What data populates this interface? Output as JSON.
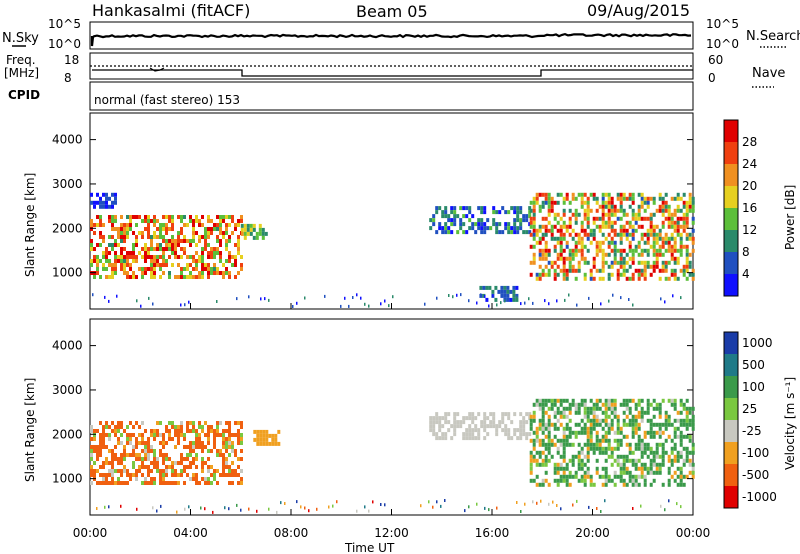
{
  "header": {
    "station": "Hankasalmi (fitACF)",
    "beam": "Beam 05",
    "date": "09/Aug/2015"
  },
  "strip": {
    "nsky_label": "N.Sky",
    "nsearch_label": "N.Search",
    "freq_label_1": "Freq.",
    "freq_label_2": "[MHz]",
    "nave_label": "Nave",
    "cpid_label": "CPID",
    "cpid_value": "normal (fast stereo) 153",
    "noise_ticks": [
      "10^5",
      "10^0"
    ],
    "freq_ticks": [
      "18",
      "8"
    ],
    "nave_ticks": [
      "60",
      "0"
    ]
  },
  "axes": {
    "ylabel": "Slant Range [km]",
    "xlabel": "Time UT",
    "x_ticks": [
      "00:00",
      "04:00",
      "08:00",
      "12:00",
      "16:00",
      "20:00",
      "00:00"
    ],
    "y_ticks": [
      "1000",
      "2000",
      "3000",
      "4000"
    ],
    "power_label": "Power [dB]",
    "velocity_label": "Velocity [m s⁻¹]"
  },
  "chart_data": [
    {
      "type": "heatmap",
      "panel": "power",
      "xlabel": "Time UT",
      "ylabel": "Slant Range [km]",
      "xlim": [
        0,
        24
      ],
      "ylim": [
        180,
        4600
      ],
      "colorbar_label": "Power [dB]",
      "colorbar_ticks": [
        4,
        8,
        12,
        16,
        20,
        24,
        28
      ],
      "colorbar_colors": [
        "#1010ff",
        "#2050c0",
        "#2a8a6a",
        "#5cbf3a",
        "#e6d020",
        "#f09020",
        "#f04010",
        "#e00000"
      ],
      "echo_regions": [
        {
          "t": [
            0.0,
            6.0
          ],
          "range_km": [
            900,
            2300
          ],
          "power_db": [
            12,
            30
          ]
        },
        {
          "t": [
            0.0,
            1.0
          ],
          "range_km": [
            2500,
            2800
          ],
          "power_db": [
            4,
            8
          ]
        },
        {
          "t": [
            6.0,
            7.0
          ],
          "range_km": [
            1800,
            2100
          ],
          "power_db": [
            10,
            20
          ]
        },
        {
          "t": [
            13.5,
            17.5
          ],
          "range_km": [
            1900,
            2500
          ],
          "power_db": [
            4,
            14
          ]
        },
        {
          "t": [
            15.5,
            17.0
          ],
          "range_km": [
            350,
            700
          ],
          "power_db": [
            4,
            12
          ]
        },
        {
          "t": [
            17.5,
            24.0
          ],
          "range_km": [
            900,
            2800
          ],
          "power_db": [
            8,
            28
          ]
        }
      ]
    },
    {
      "type": "heatmap",
      "panel": "velocity",
      "xlabel": "Time UT",
      "ylabel": "Slant Range [km]",
      "xlim": [
        0,
        24
      ],
      "ylim": [
        180,
        4600
      ],
      "colorbar_label": "Velocity [m s⁻¹]",
      "colorbar_ticks": [
        "1000",
        "500",
        "100",
        "25",
        "-25",
        "-100",
        "-500",
        "-1000"
      ],
      "colorbar_colors": [
        "#1a3ca8",
        "#1f7a88",
        "#3a9a4a",
        "#7ac840",
        "#c8c8c0",
        "#f0a020",
        "#f06010",
        "#e00000"
      ],
      "echo_regions": [
        {
          "t": [
            0.0,
            6.0
          ],
          "range_km": [
            900,
            2300
          ],
          "velocity": [
            -500,
            100
          ]
        },
        {
          "t": [
            6.5,
            7.5
          ],
          "range_km": [
            1800,
            2100
          ],
          "velocity": [
            -100,
            -25
          ]
        },
        {
          "t": [
            13.5,
            17.5
          ],
          "range_km": [
            1900,
            2500
          ],
          "velocity": [
            -25,
            25
          ]
        },
        {
          "t": [
            17.5,
            24.0
          ],
          "range_km": [
            900,
            2800
          ],
          "velocity": [
            -100,
            500
          ]
        }
      ]
    }
  ],
  "colors": {
    "axis": "#000000",
    "background": "#ffffff"
  }
}
